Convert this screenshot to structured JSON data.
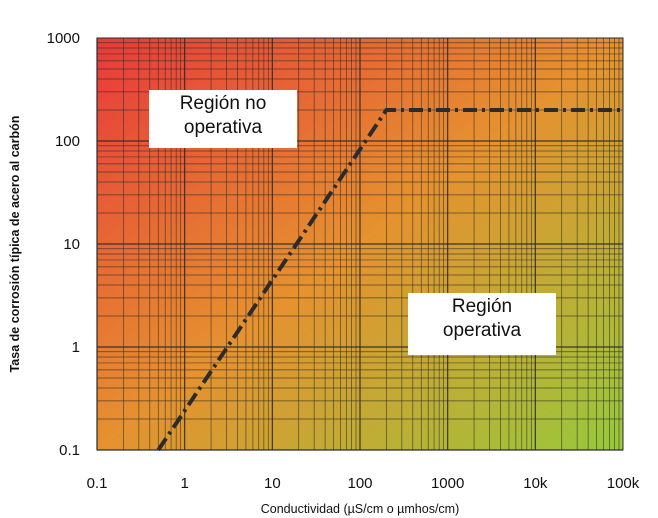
{
  "chart_data": {
    "type": "line",
    "title": "",
    "xlabel": "Conductividad (µS/cm o µmhos/cm)",
    "ylabel": "Tasa de corrosión típica de acero al carbón",
    "x_scale": "log",
    "y_scale": "log",
    "xlim": [
      0.1,
      100000
    ],
    "ylim": [
      0.1,
      1000
    ],
    "x_ticks": [
      0.1,
      1,
      10,
      100,
      1000,
      10000,
      100000
    ],
    "x_tick_labels": [
      "0.1",
      "1",
      "10",
      "100",
      "1000",
      "10k",
      "100k"
    ],
    "y_ticks": [
      0.1,
      1,
      10,
      100,
      1000
    ],
    "y_tick_labels": [
      "0.1",
      "1",
      "10",
      "100",
      "1000"
    ],
    "grid": true,
    "background_gradient": {
      "top_left": "#e8393a",
      "bottom_right": "#97c93b"
    },
    "series": [
      {
        "line_style": "dash-dot",
        "color": "#2b2b2b",
        "x": [
          0.5,
          200,
          100000
        ],
        "y": [
          0.1,
          200,
          200
        ]
      }
    ],
    "annotations": [
      {
        "lines": [
          "Región no",
          "operativa"
        ],
        "x": 3,
        "y": 150
      },
      {
        "lines": [
          "Región",
          "operativa"
        ],
        "x": 5000,
        "y": 2
      }
    ]
  }
}
